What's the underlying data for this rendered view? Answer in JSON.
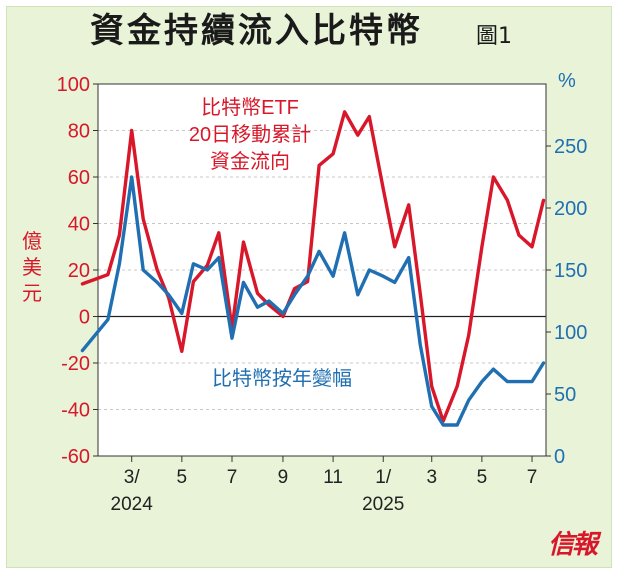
{
  "header": {
    "title": "資金持續流入比特幣",
    "figure_label": "圖1"
  },
  "left_axis_unit": "億美元",
  "right_axis_unit": "%",
  "logo_text": "信報",
  "colors": {
    "red_series": "#d8182a",
    "blue_series": "#1f6fb2",
    "plot_background": "#ffffff",
    "frame_background": "#e8f3d8",
    "grid": "#c8c8c8"
  },
  "chart_data": {
    "type": "line",
    "title": "資金持續流入比特幣",
    "x_tick_labels": [
      "3/",
      "5",
      "7",
      "9",
      "11",
      "1/",
      "3",
      "5",
      "7"
    ],
    "year_labels": [
      "2024",
      "2025"
    ],
    "y_left": {
      "label": "億美元",
      "ticks": [
        100,
        80,
        60,
        40,
        20,
        0,
        -20,
        -40,
        -60
      ],
      "range": [
        -60,
        100
      ],
      "zero_line": true
    },
    "y_right": {
      "label": "%",
      "ticks": [
        250,
        200,
        150,
        100,
        50,
        0
      ],
      "range": [
        0,
        300
      ]
    },
    "grid": "horizontal dashed",
    "series": [
      {
        "name": "比特幣ETF 20日移動累計 資金流向",
        "axis": "left",
        "color": "#d8182a",
        "x": [
          "2024-01",
          "2024-02",
          "2024-02-15",
          "2024-03",
          "2024-03-15",
          "2024-04",
          "2024-04-15",
          "2024-05",
          "2024-05-15",
          "2024-06",
          "2024-06-15",
          "2024-07",
          "2024-07-15",
          "2024-08",
          "2024-08-15",
          "2024-09",
          "2024-09-15",
          "2024-10",
          "2024-10-15",
          "2024-11",
          "2024-11-15",
          "2024-12",
          "2024-12-15",
          "2025-01",
          "2025-01-15",
          "2025-02",
          "2025-02-15",
          "2025-03",
          "2025-03-15",
          "2025-04",
          "2025-04-15",
          "2025-05",
          "2025-05-15",
          "2025-06",
          "2025-06-15",
          "2025-07",
          "2025-07-15"
        ],
        "values": [
          14,
          18,
          35,
          80,
          42,
          20,
          8,
          -15,
          15,
          22,
          36,
          -5,
          32,
          10,
          5,
          0,
          12,
          15,
          65,
          70,
          88,
          78,
          86,
          55,
          30,
          48,
          10,
          -30,
          -45,
          -30,
          -8,
          30,
          60,
          50,
          35,
          30,
          50
        ]
      },
      {
        "name": "比特幣按年變幅",
        "axis": "right",
        "color": "#1f6fb2",
        "x": [
          "2024-01",
          "2024-02",
          "2024-02-15",
          "2024-03",
          "2024-03-15",
          "2024-04",
          "2024-04-15",
          "2024-05",
          "2024-05-15",
          "2024-06",
          "2024-06-15",
          "2024-07",
          "2024-07-15",
          "2024-08",
          "2024-08-15",
          "2024-09",
          "2024-09-15",
          "2024-10",
          "2024-10-15",
          "2024-11",
          "2024-11-15",
          "2024-12",
          "2024-12-15",
          "2025-01",
          "2025-01-15",
          "2025-02",
          "2025-02-15",
          "2025-03",
          "2025-03-15",
          "2025-04",
          "2025-04-15",
          "2025-05",
          "2025-05-15",
          "2025-06",
          "2025-06-15",
          "2025-07",
          "2025-07-15"
        ],
        "values": [
          85,
          110,
          155,
          225,
          150,
          140,
          130,
          115,
          155,
          150,
          160,
          95,
          140,
          120,
          125,
          115,
          130,
          145,
          165,
          145,
          180,
          130,
          150,
          145,
          140,
          160,
          90,
          40,
          25,
          25,
          45,
          60,
          70,
          60,
          60,
          60,
          75
        ]
      }
    ],
    "annotations": [
      {
        "text": "比特幣ETF",
        "color": "#d8182a"
      },
      {
        "text": "20日移動累計",
        "color": "#d8182a"
      },
      {
        "text": "資金流向",
        "color": "#d8182a"
      },
      {
        "text": "比特幣按年變幅",
        "color": "#1f6fb2"
      }
    ]
  }
}
